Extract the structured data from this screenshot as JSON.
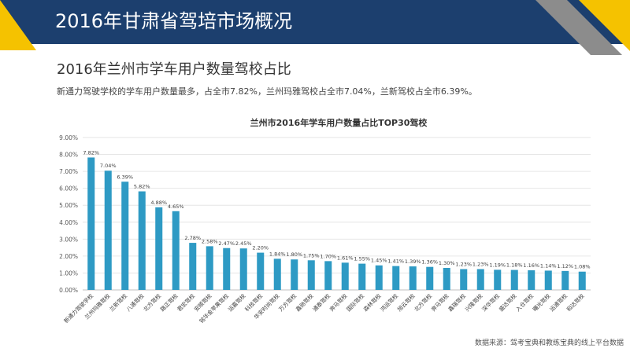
{
  "header": {
    "title": "2016年甘肃省驾培市场概况"
  },
  "section": {
    "subtitle": "2016年兰州市学车用户数量驾校占比",
    "description": "新通力驾驶学校的学车用户数量最多，占全市7.82%，兰州玛雅驾校占全市7.04%，兰新驾校占全市6.39%。"
  },
  "colors": {
    "header_bg": "#1c3f6e",
    "accent_yellow": "#f5c200",
    "accent_gray": "#8c8c8c",
    "bar": "#2e9ac4"
  },
  "chart_data": {
    "type": "bar",
    "title": "兰州市2016年学车用户数量占比TOP30驾校",
    "categories": [
      "新通力驾驶学校",
      "兰州玛雅驾校",
      "兰新驾校",
      "八通驾校",
      "北方驾校",
      "路正驾校",
      "君宏驾校",
      "安顺驾校",
      "铭华金苹果驾校",
      "运嘉驾校",
      "科技驾校",
      "华安时尚驾校",
      "万方驾校",
      "鑫驰驾校",
      "通泰驾校",
      "奔马驾校",
      "国际驾校",
      "森林驾校",
      "鸿运驾校",
      "旭云驾校",
      "北方驾校",
      "奔马驾校",
      "鑫瑞驾校",
      "兴隆驾校",
      "深华驾校",
      "盛达驾校",
      "入仓驾校",
      "曙光驾校",
      "运通驾校",
      "和达驾校"
    ],
    "values": [
      7.82,
      7.04,
      6.39,
      5.82,
      4.88,
      4.65,
      2.78,
      2.58,
      2.47,
      2.45,
      2.2,
      1.84,
      1.8,
      1.75,
      1.7,
      1.61,
      1.55,
      1.45,
      1.41,
      1.39,
      1.36,
      1.3,
      1.23,
      1.23,
      1.19,
      1.18,
      1.16,
      1.14,
      1.12,
      1.08
    ],
    "value_labels": [
      "7.82%",
      "7.04%",
      "6.39%",
      "5.82%",
      "4.88%",
      "4.65%",
      "2.78%",
      "2.58%",
      "2.47%",
      "2.45%",
      "2.20%",
      "1.84%",
      "1.80%",
      "1.75%",
      "1.70%",
      "1.61%",
      "1.55%",
      "1.45%",
      "1.41%",
      "1.39%",
      "1.36%",
      "1.30%",
      "1.23%",
      "1.23%",
      "1.19%",
      "1.18%",
      "1.16%",
      "1.14%",
      "1.12%",
      "1.08%"
    ],
    "yticks": [
      "0.00%",
      "1.00%",
      "2.00%",
      "3.00%",
      "4.00%",
      "5.00%",
      "6.00%",
      "7.00%",
      "8.00%",
      "9.00%"
    ],
    "ylim": [
      0,
      9
    ],
    "grid": true,
    "legend": "none"
  },
  "footer": {
    "source": "数据来源：驾考宝典和教练宝典的线上平台数据"
  }
}
